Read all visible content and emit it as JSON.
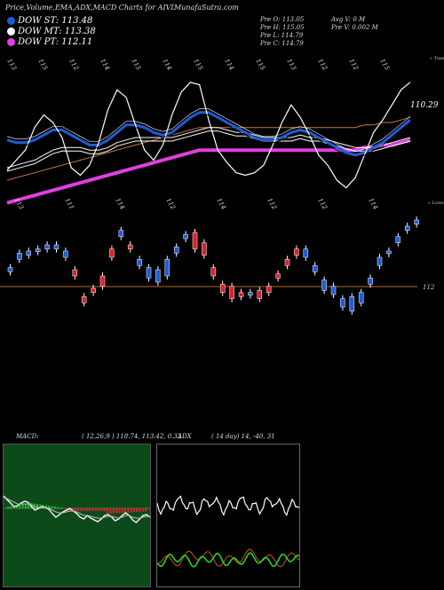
{
  "header": {
    "title": "Price,Volume,EMA,ADX,MACD Charts for AIVL",
    "site": "MunafaSutra.com"
  },
  "legend": [
    {
      "label": "DOW ST: 113.48",
      "color": "#1e5bd8"
    },
    {
      "label": "DOW MT: 113.38",
      "color": "#ffffff"
    },
    {
      "label": "DOW PT: 112.11",
      "color": "#e040e0"
    }
  ],
  "ohlc": {
    "col1": [
      "Pre  O: 113.05",
      "Pre  H: 115.05",
      "Pre  L: 114.79",
      "Pre  C: 114.79"
    ],
    "col2": [
      "Avg V: 0  M",
      "Pre  V: 0.002  M"
    ]
  },
  "price_axis": {
    "last_label": "110.29",
    "ref_label": "112",
    "tops_label": "« Tops",
    "lows_label": "« Lows"
  },
  "top_labels": [
    "113",
    "115",
    "112",
    "114",
    "115",
    "114",
    "115",
    "114",
    "115",
    "113",
    "112",
    "112",
    "115"
  ],
  "low_labels": [
    "113",
    "111",
    "114",
    "112",
    "114",
    "112",
    "112",
    "114"
  ],
  "macd_label": "MACD:",
  "macd_params": "( 12,26,9 ) 118.74,  113.42,  0.32",
  "adx_label": "ADX",
  "adx_params": "( 14  day) 14,  -40,  31",
  "colors": {
    "up": "#1e5bd8",
    "down": "#e0202a",
    "ema_short": "#1e5bd8",
    "ema_mid": "#ffffff",
    "ema_long": "#e040e0",
    "ema_slow": "#c97a3a"
  },
  "chart_data": {
    "type": "candlestick",
    "close_series": [
      111.2,
      111.6,
      112.0,
      112.9,
      113.4,
      113.1,
      112.5,
      111.3,
      111.0,
      111.4,
      112.3,
      113.6,
      114.4,
      114.1,
      113.0,
      112.0,
      111.6,
      112.2,
      113.4,
      114.3,
      114.7,
      114.6,
      113.2,
      112.0,
      111.5,
      111.1,
      111.0,
      111.1,
      111.4,
      112.2,
      113.1,
      113.8,
      113.3,
      112.6,
      111.8,
      111.4,
      110.8,
      110.5,
      110.9,
      111.8,
      112.7,
      113.2,
      113.8,
      114.4,
      114.7
    ],
    "ema_short": [
      112.4,
      112.3,
      112.3,
      112.4,
      112.6,
      112.8,
      112.8,
      112.6,
      112.4,
      112.2,
      112.2,
      112.4,
      112.7,
      113.0,
      113.0,
      112.9,
      112.7,
      112.6,
      112.7,
      113.0,
      113.3,
      113.5,
      113.5,
      113.3,
      113.1,
      112.9,
      112.7,
      112.5,
      112.4,
      112.4,
      112.5,
      112.7,
      112.8,
      112.7,
      112.5,
      112.3,
      112.1,
      111.9,
      111.8,
      111.9,
      112.1,
      112.3,
      112.6,
      112.9,
      113.2
    ],
    "ema_mid": [
      111.3,
      111.4,
      111.5,
      111.6,
      111.8,
      112.0,
      112.1,
      112.1,
      112.1,
      112.0,
      112.0,
      112.1,
      112.3,
      112.4,
      112.5,
      112.5,
      112.5,
      112.5,
      112.5,
      112.6,
      112.7,
      112.8,
      112.9,
      112.9,
      112.8,
      112.7,
      112.7,
      112.6,
      112.5,
      112.5,
      112.5,
      112.5,
      112.6,
      112.5,
      112.5,
      112.4,
      112.3,
      112.2,
      112.1,
      112.1,
      112.1,
      112.2,
      112.3,
      112.4,
      112.5
    ],
    "ema_long": [
      109.9,
      110.0,
      110.1,
      110.2,
      110.3,
      110.4,
      110.5,
      110.6,
      110.7,
      110.8,
      110.9,
      111.0,
      111.1,
      111.2,
      111.3,
      111.4,
      111.5,
      111.6,
      111.7,
      111.8,
      111.9,
      112.0,
      112.0,
      112.0,
      112.0,
      112.0,
      112.0,
      112.0,
      112.0,
      112.0,
      112.0,
      112.0,
      112.0,
      112.0,
      112.0,
      112.0,
      112.0,
      112.0,
      112.0,
      112.1,
      112.1,
      112.2,
      112.2,
      112.3,
      112.4
    ],
    "ylim": [
      109.5,
      115.5
    ],
    "candles_open": [
      112.3,
      112.9,
      113.1,
      113.3,
      113.4,
      113.4,
      113.0,
      112.4,
      111.1,
      111.5,
      112.1,
      113.4,
      114.0,
      113.6,
      112.6,
      112.0,
      111.8,
      112.1,
      113.2,
      113.9,
      114.2,
      113.7,
      112.5,
      111.7,
      111.6,
      111.3,
      111.2,
      111.4,
      111.6,
      112.2,
      112.9,
      113.4,
      113.0,
      112.3,
      111.4,
      111.2,
      110.6,
      110.4,
      110.8,
      111.7,
      112.6,
      113.2,
      113.7,
      114.3,
      114.6
    ],
    "candles_close": [
      112.5,
      113.2,
      113.3,
      113.4,
      113.6,
      113.6,
      113.3,
      112.1,
      110.8,
      111.3,
      111.6,
      113.0,
      114.3,
      113.4,
      112.9,
      112.5,
      112.4,
      112.9,
      113.5,
      114.1,
      113.4,
      113.1,
      112.1,
      111.3,
      111.0,
      111.1,
      111.3,
      111.0,
      111.3,
      112.0,
      112.6,
      113.1,
      113.4,
      112.6,
      111.9,
      111.6,
      111.0,
      111.1,
      111.3,
      112.0,
      113.0,
      113.3,
      114.0,
      114.5,
      114.8
    ]
  }
}
